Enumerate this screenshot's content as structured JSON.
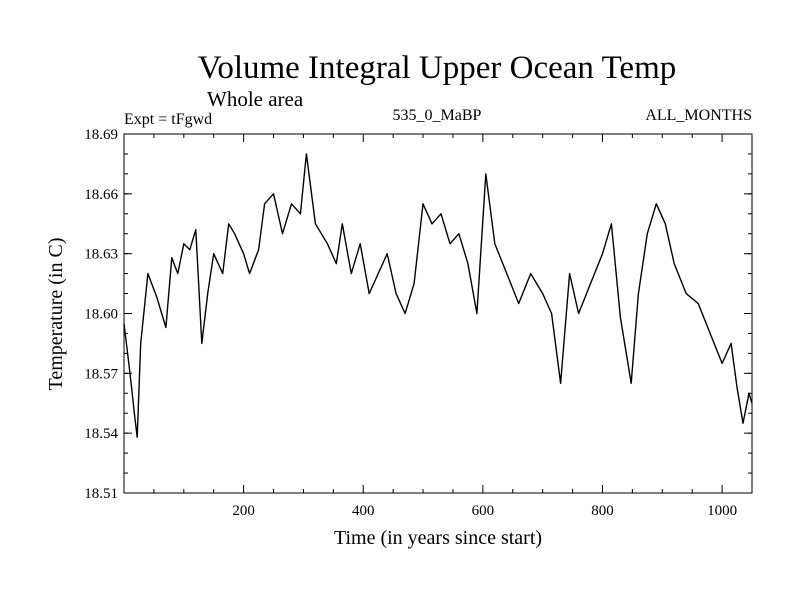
{
  "chart_data": {
    "type": "line",
    "title": "Volume Integral Upper Ocean Temp",
    "subtitle": "Whole area",
    "header_left": "Expt = tFgwd",
    "header_center": "535_0_MaBP",
    "header_right": "ALL_MONTHS",
    "xlabel": "Time (in years since start)",
    "ylabel": "Temperature (in C)",
    "xlim": [
      0,
      1050
    ],
    "ylim": [
      18.51,
      18.69
    ],
    "xticks": [
      200,
      400,
      600,
      800,
      1000
    ],
    "yticks": [
      "18.51",
      "18.54",
      "18.57",
      "18.60",
      "18.63",
      "18.66",
      "18.69"
    ],
    "series": [
      {
        "name": "Volume integral upper ocean temperature",
        "color": "#000000",
        "x": [
          0,
          10,
          18,
          22,
          28,
          40,
          55,
          70,
          80,
          90,
          100,
          110,
          120,
          130,
          140,
          150,
          165,
          175,
          185,
          200,
          210,
          225,
          235,
          250,
          265,
          280,
          295,
          305,
          320,
          340,
          355,
          365,
          380,
          395,
          410,
          425,
          440,
          455,
          470,
          485,
          500,
          515,
          530,
          545,
          560,
          575,
          590,
          605,
          620,
          640,
          660,
          680,
          700,
          715,
          730,
          745,
          760,
          780,
          800,
          815,
          830,
          848,
          860,
          875,
          890,
          905,
          920,
          940,
          960,
          980,
          1000,
          1015,
          1025,
          1035,
          1045,
          1050
        ],
        "y": [
          18.595,
          18.57,
          18.548,
          18.538,
          18.585,
          18.62,
          18.608,
          18.593,
          18.628,
          18.62,
          18.635,
          18.632,
          18.642,
          18.585,
          18.61,
          18.63,
          18.62,
          18.645,
          18.64,
          18.63,
          18.62,
          18.632,
          18.655,
          18.66,
          18.64,
          18.655,
          18.65,
          18.68,
          18.645,
          18.635,
          18.625,
          18.645,
          18.62,
          18.635,
          18.61,
          18.62,
          18.63,
          18.61,
          18.6,
          18.615,
          18.655,
          18.645,
          18.65,
          18.635,
          18.64,
          18.625,
          18.6,
          18.67,
          18.635,
          18.62,
          18.605,
          18.62,
          18.61,
          18.6,
          18.565,
          18.62,
          18.6,
          18.615,
          18.63,
          18.645,
          18.598,
          18.565,
          18.61,
          18.64,
          18.655,
          18.645,
          18.625,
          18.61,
          18.605,
          18.59,
          18.575,
          18.585,
          18.563,
          18.545,
          18.56,
          18.555
        ]
      }
    ]
  }
}
